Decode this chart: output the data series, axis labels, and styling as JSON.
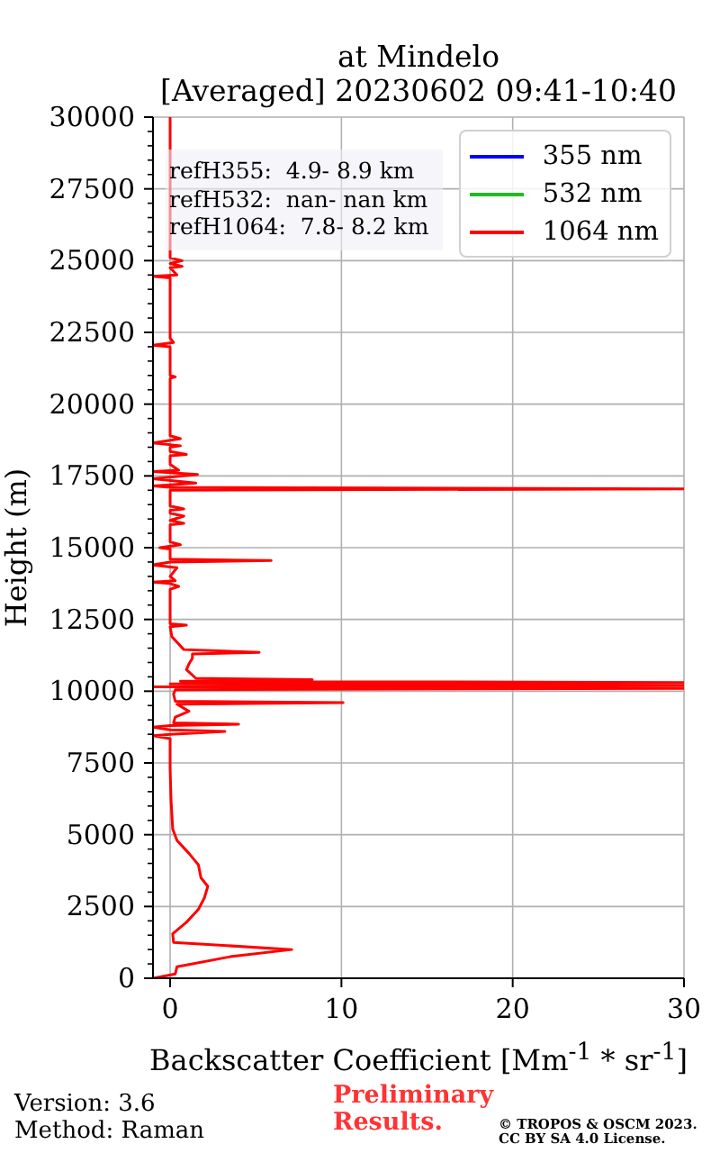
{
  "chart_data": {
    "type": "line",
    "title": "at Mindelo",
    "subtitle": "[Averaged] 20230602 09:41-10:40",
    "xlabel": "Backscatter Coefficient [Mm$^{-1}$ * sr$^{-1}$]",
    "ylabel": "Height (m)",
    "xlim": [
      -1,
      30
    ],
    "xticks": [
      0,
      10,
      20,
      30
    ],
    "ylim": [
      0,
      30000
    ],
    "yticks": [
      0,
      {
        "value": 500,
        "label": null
      },
      {
        "value": 1000,
        "label": null
      },
      {
        "value": 1500,
        "label": null
      },
      {
        "value": 2000,
        "label": null
      },
      2500,
      {
        "value": 3000,
        "label": null
      },
      {
        "value": 3500,
        "label": null
      },
      {
        "value": 4000,
        "label": null
      },
      {
        "value": 4500,
        "label": null
      },
      5000,
      {
        "value": 5500,
        "label": null
      },
      {
        "value": 6000,
        "label": null
      },
      {
        "value": 6500,
        "label": null
      },
      {
        "value": 7000,
        "label": null
      },
      7500,
      {
        "value": 8000,
        "label": null
      },
      {
        "value": 8500,
        "label": null
      },
      {
        "value": 9000,
        "label": null
      },
      {
        "value": 9500,
        "label": null
      },
      10000,
      {
        "value": 10500,
        "label": null
      },
      {
        "value": 11000,
        "label": null
      },
      {
        "value": 11500,
        "label": null
      },
      {
        "value": 12000,
        "label": null
      },
      12500,
      {
        "value": 13000,
        "label": null
      },
      {
        "value": 13500,
        "label": null
      },
      {
        "value": 14000,
        "label": null
      },
      {
        "value": 14500,
        "label": null
      },
      15000,
      {
        "value": 15500,
        "label": null
      },
      {
        "value": 16000,
        "label": null
      },
      {
        "value": 16500,
        "label": null
      },
      {
        "value": 17000,
        "label": null
      },
      17500,
      {
        "value": 18000,
        "label": null
      },
      {
        "value": 18500,
        "label": null
      },
      {
        "value": 19000,
        "label": null
      },
      {
        "value": 19500,
        "label": null
      },
      20000,
      {
        "value": 20500,
        "label": null
      },
      {
        "value": 21000,
        "label": null
      },
      {
        "value": 21500,
        "label": null
      },
      {
        "value": 22000,
        "label": null
      },
      22500,
      {
        "value": 23000,
        "label": null
      },
      {
        "value": 23500,
        "label": null
      },
      {
        "value": 24000,
        "label": null
      },
      {
        "value": 24500,
        "label": null
      },
      25000,
      {
        "value": 25500,
        "label": null
      },
      {
        "value": 26000,
        "label": null
      },
      {
        "value": 26500,
        "label": null
      },
      {
        "value": 27000,
        "label": null
      },
      27500,
      {
        "value": 28000,
        "label": null
      },
      {
        "value": 28500,
        "label": null
      },
      {
        "value": 29000,
        "label": null
      },
      {
        "value": 29500,
        "label": null
      },
      30000
    ],
    "grid": true,
    "legend": "top right",
    "series": [
      {
        "name": "355 nm",
        "color": "#0000ff"
      },
      {
        "name": "532 nm",
        "color": "#22bb22"
      },
      {
        "name": "1064 nm",
        "color": "#ff0000",
        "x": [
          -1,
          0.3,
          0.4,
          3.5,
          7.1,
          0.2,
          0.15,
          0.95,
          1.65,
          2.0,
          2.2,
          1.8,
          1.65,
          1.1,
          0.4,
          0.15,
          0.05,
          0,
          0,
          -1,
          0,
          3.2,
          0,
          -1,
          0,
          4.0,
          0.2,
          0.3,
          1.1,
          0.4,
          10.1,
          0.3,
          0.2,
          0.3,
          30,
          -1,
          30,
          0,
          30,
          0.6,
          8.3,
          1.5,
          0.95,
          1.1,
          1.3,
          1.3,
          5.2,
          0.8,
          0.1,
          0,
          0.95,
          0,
          0,
          0.5,
          0,
          -1,
          0.3,
          0,
          0.4,
          -1,
          0,
          5.9,
          0,
          0,
          -0.6,
          0.6,
          0,
          0,
          0.8,
          0,
          0.8,
          0,
          0,
          0.8,
          0,
          0,
          30,
          0,
          -1,
          1.5,
          -1,
          1.6,
          -1,
          0.5,
          0,
          0,
          0.95,
          0,
          0,
          0.6,
          -1,
          0.6,
          0,
          0,
          0.3,
          0,
          0,
          -1,
          0.2,
          0,
          0,
          -1,
          0.4,
          0,
          0.7,
          0,
          0.7,
          0,
          0
        ],
        "values": [
          0,
          150,
          400,
          750,
          1000,
          1250,
          1550,
          1950,
          2400,
          2800,
          3200,
          3500,
          3950,
          4350,
          4800,
          5200,
          6250,
          7300,
          8350,
          8450,
          8500,
          8600,
          8650,
          8750,
          8800,
          8850,
          8900,
          9100,
          9300,
          9550,
          9600,
          9650,
          9900,
          10050,
          10100,
          10150,
          10200,
          10250,
          10300,
          10350,
          10400,
          10450,
          10750,
          10950,
          11150,
          11300,
          11350,
          11450,
          11900,
          12250,
          12300,
          12350,
          13550,
          13650,
          13750,
          13800,
          13850,
          14000,
          14300,
          14400,
          14500,
          14550,
          14600,
          14950,
          15000,
          15100,
          15200,
          15800,
          15850,
          15950,
          16100,
          16200,
          16300,
          16350,
          16450,
          17000,
          17050,
          17100,
          17150,
          17250,
          17400,
          17550,
          17650,
          17700,
          17900,
          18200,
          18250,
          18350,
          18500,
          18550,
          18650,
          18800,
          18900,
          20900,
          20950,
          21000,
          22000,
          22050,
          22150,
          22300,
          24400,
          24450,
          24500,
          24750,
          24800,
          24900,
          25000,
          25100,
          30000
        ]
      }
    ],
    "annotations": [
      "refH355:  4.9- 8.9 km",
      "refH532:  nan- nan km",
      "refH1064:  7.8- 8.2 km",
      "Version: 3.6",
      "Method: Raman",
      "Preliminary Results.",
      "© TROPOS & OSCM 2023.",
      "CC BY SA 4.0 License."
    ]
  }
}
